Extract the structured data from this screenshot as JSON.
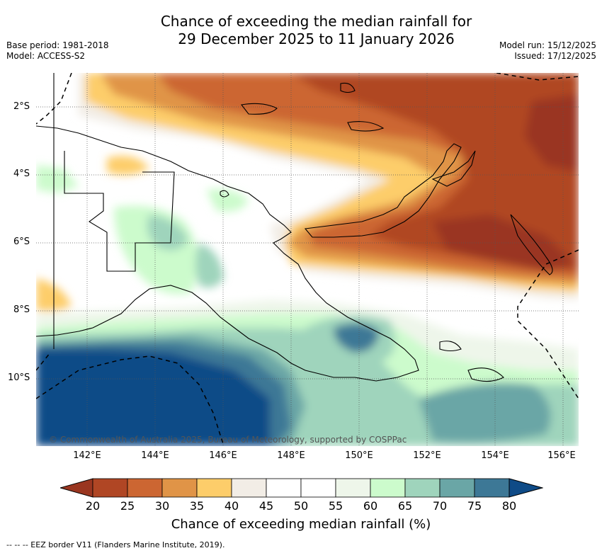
{
  "title": {
    "line1": "Chance of exceeding the median rainfall for",
    "line2": "29 December 2025 to 11 January 2026"
  },
  "info_left": {
    "base_period": "Base period: 1981-2018",
    "model": "Model: ACCESS-S2"
  },
  "info_right": {
    "model_run": "Model run: 15/12/2025",
    "issued": "Issued: 17/12/2025"
  },
  "map": {
    "lat_labels": [
      "2°S",
      "4°S",
      "6°S",
      "8°S",
      "10°S"
    ],
    "lon_labels": [
      "142°E",
      "144°E",
      "146°E",
      "148°E",
      "150°E",
      "152°E",
      "154°E",
      "156°E"
    ],
    "credit": "© Commonwealth of Australia 2025, Bureau of Meteorology, supported by COSPPac"
  },
  "colorbar": {
    "ticks": [
      "20",
      "25",
      "30",
      "35",
      "40",
      "45",
      "50",
      "55",
      "60",
      "65",
      "70",
      "75",
      "80"
    ],
    "colors": [
      "#b04624",
      "#cc6632",
      "#e09447",
      "#fdcd6a",
      "#f2ede6",
      "#ffffff",
      "#ffffff",
      "#eef6ea",
      "#ccfbcc",
      "#9fd4bc",
      "#6aa6a6",
      "#3d7896"
    ],
    "under_color": "#9a3620",
    "over_color": "#0f4b87",
    "title": "Chance of exceeding median rainfall (%)"
  },
  "footer": "-- -- -- EEZ border V11 (Flanders Marine Institute, 2019)."
}
